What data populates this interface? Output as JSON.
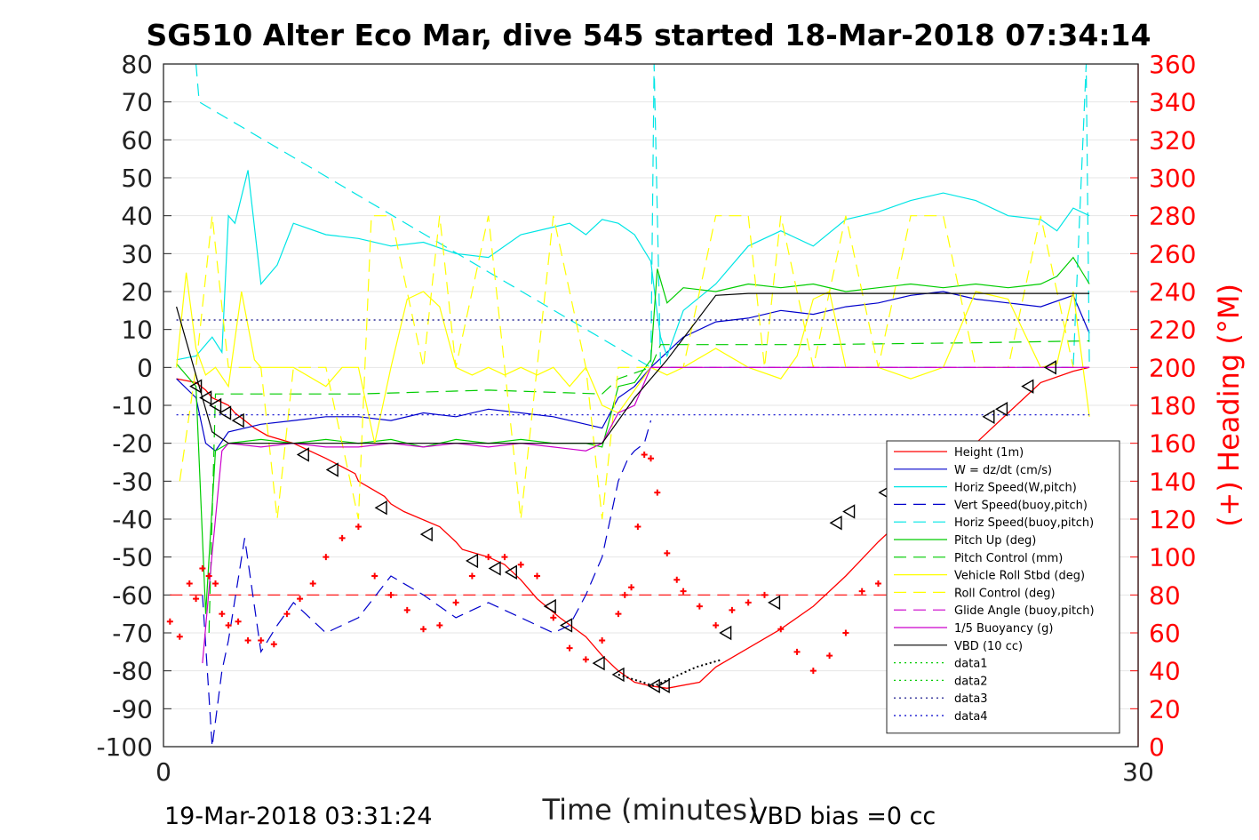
{
  "chart_data": {
    "type": "line",
    "title": "SG510 Alter Eco Mar, dive 545 started 18-Mar-2018 07:34:14",
    "xlabel": "Time (minutes)",
    "ylabel": "",
    "ylabel_right": "(+) Heading (°M)",
    "xlim": [
      0,
      30
    ],
    "ylim": [
      -100,
      80
    ],
    "ylim_right": [
      0,
      360
    ],
    "x_ticks": [
      0,
      30
    ],
    "y_ticks": [
      80,
      70,
      60,
      50,
      40,
      30,
      20,
      10,
      0,
      -10,
      -20,
      -30,
      -40,
      -50,
      -60,
      -70,
      -80,
      -90,
      -100
    ],
    "y_right_ticks": [
      360,
      340,
      320,
      300,
      280,
      260,
      240,
      220,
      200,
      180,
      160,
      140,
      120,
      100,
      80,
      60,
      40,
      20,
      0
    ],
    "grid": true,
    "legend_position": "lower-right",
    "footer_left": "19-Mar-2018 03:31:24",
    "footer_right": "VBD bias =0 cc",
    "colors": {
      "height": "#ff0000",
      "w": "#0000cc",
      "horiz": "#00e5e5",
      "vert_buoy": "#0000cc",
      "horiz_buoy": "#00e5e5",
      "pitch": "#00cc00",
      "pitch_ctrl": "#00cc00",
      "roll": "#ffff00",
      "roll_ctrl": "#ffff00",
      "glide": "#cc00cc",
      "buoy": "#cc00cc",
      "vbd": "#000000",
      "heading": "#ff0000"
    },
    "series": [
      {
        "key": "height",
        "name": "Height (1m)",
        "style": "solid",
        "color": "#ff0000",
        "x": [
          0.4,
          1.0,
          1.3,
          1.5,
          2.0,
          2.2,
          2.8,
          3.2,
          4.0,
          5.0,
          5.9,
          6.0,
          6.8,
          7.0,
          7.4,
          8.5,
          9.0,
          9.2,
          10.0,
          10.5,
          11.0,
          11.5,
          12.2,
          13.0,
          13.5,
          14.0,
          14.5,
          15.0,
          15.5,
          16.5,
          17.0,
          18.0,
          19.0,
          20.0,
          21.0,
          22.0,
          23.0,
          24.0,
          25.0,
          26.0,
          26.5,
          27.0,
          28.0,
          28.5
        ],
        "y": [
          -3,
          -4,
          -6,
          -8,
          -10,
          -12,
          -16,
          -18,
          -20,
          -24,
          -28,
          -30,
          -34,
          -36,
          -38,
          -42,
          -46,
          -48,
          -50,
          -52,
          -56,
          -61,
          -66,
          -71,
          -76,
          -80,
          -83,
          -84,
          -84.6,
          -83,
          -79,
          -74,
          -69,
          -63,
          -55,
          -46,
          -38,
          -28,
          -20,
          -12,
          -8,
          -4,
          -1,
          0
        ]
      },
      {
        "key": "w",
        "name": "W = dz/dt (cm/s)",
        "style": "solid",
        "color": "#0000cc",
        "x": [
          0.4,
          1.0,
          1.3,
          1.6,
          2.0,
          3.0,
          4.0,
          5.0,
          6.0,
          7.0,
          8.0,
          9.0,
          10.0,
          11.0,
          12.0,
          13.0,
          13.5,
          14.0,
          14.5,
          15.0,
          16.0,
          17.0,
          18.0,
          19.0,
          20.0,
          21.0,
          22.0,
          23.0,
          24.0,
          25.0,
          26.0,
          27.0,
          28.0,
          28.5
        ],
        "y": [
          -3,
          -8,
          -20,
          -22,
          -17,
          -15,
          -14,
          -13,
          -13,
          -14,
          -12,
          -13,
          -11,
          -12,
          -13,
          -15,
          -16,
          -8,
          -5,
          0,
          8,
          12,
          13,
          15,
          14,
          16,
          17,
          19,
          20,
          18,
          17,
          16,
          19,
          9
        ]
      },
      {
        "key": "horiz",
        "name": "Horiz Speed(W,pitch)",
        "style": "solid",
        "color": "#00e5e5",
        "x": [
          0.4,
          1.0,
          1.5,
          1.8,
          2.0,
          2.2,
          2.6,
          3.0,
          3.5,
          4.0,
          5.0,
          6.0,
          7.0,
          8.0,
          9.0,
          10.0,
          11.0,
          12.0,
          12.5,
          13.0,
          13.5,
          14.0,
          14.5,
          15.0,
          15.2,
          15.3,
          15.5,
          16.0,
          17.0,
          18.0,
          19.0,
          20.0,
          21.0,
          22.0,
          23.0,
          24.0,
          25.0,
          26.0,
          27.0,
          27.5,
          28.0,
          28.5
        ],
        "y": [
          2,
          3,
          8,
          4,
          40,
          38,
          52,
          22,
          27,
          38,
          35,
          34,
          32,
          33,
          30,
          29,
          35,
          37,
          38,
          35,
          39,
          38,
          35,
          28,
          14,
          8,
          3,
          15,
          22,
          32,
          36,
          32,
          39,
          41,
          44,
          46,
          44,
          40,
          39,
          36,
          42,
          40
        ]
      },
      {
        "key": "vert_buoy",
        "name": "Vert Speed(buoy,pitch)",
        "style": "dashed",
        "color": "#0000cc",
        "x": [
          1.2,
          1.5,
          1.8,
          2.0,
          2.5,
          3.0,
          3.5,
          4.0,
          5.0,
          6.0,
          7.0,
          8.0,
          9.0,
          10.0,
          11.0,
          12.0,
          12.5,
          13.0,
          13.5,
          14.0,
          14.3,
          14.5,
          14.8,
          15.0
        ],
        "y": [
          -60,
          -100,
          -80,
          -72,
          -45,
          -75,
          -68,
          -62,
          -70,
          -66,
          -55,
          -60,
          -66,
          -62,
          -66,
          -70,
          -68,
          -60,
          -50,
          -30,
          -24,
          -22,
          -20,
          -14
        ]
      },
      {
        "key": "horiz_buoy",
        "name": "Horiz Speed(buoy,pitch)",
        "style": "dashed",
        "color": "#00e5e5",
        "x": [
          1.0,
          1.1,
          15.0,
          15.1,
          15.3,
          15.5,
          15.8,
          16.0,
          17.0,
          20.0,
          24.0,
          27.0,
          28.0,
          28.4,
          28.5
        ],
        "y": [
          80,
          70,
          0,
          80,
          0,
          0,
          0,
          0,
          0,
          0,
          0,
          0,
          0,
          80,
          0
        ]
      },
      {
        "key": "pitch",
        "name": "Pitch Up (deg)",
        "style": "solid",
        "color": "#00cc00",
        "x": [
          0.4,
          1.0,
          1.3,
          1.6,
          2.0,
          3.0,
          4.0,
          5.0,
          6.0,
          7.0,
          8.0,
          9.0,
          10.0,
          11.0,
          12.0,
          13.0,
          13.5,
          14.0,
          14.5,
          15.0,
          15.2,
          15.5,
          16.0,
          17.0,
          18.0,
          19.0,
          20.0,
          21.0,
          22.0,
          23.0,
          24.0,
          25.0,
          26.0,
          27.0,
          27.5,
          28.0,
          28.5
        ],
        "y": [
          1,
          -5,
          -65,
          -22,
          -20,
          -19,
          -20,
          -19,
          -20,
          -19,
          -21,
          -19,
          -20,
          -19,
          -20,
          -20,
          -21,
          -5,
          -4,
          2,
          26,
          17,
          21,
          20,
          22,
          21,
          22,
          20,
          21,
          22,
          21,
          22,
          21,
          22,
          24,
          29,
          22
        ]
      },
      {
        "key": "pitch_ctrl",
        "name": "Pitch Control (mm)",
        "style": "dashed",
        "color": "#00cc00",
        "x": [
          1.4,
          1.6,
          3.0,
          6.0,
          10.0,
          13.5,
          14.0,
          15.0,
          15.3,
          20.0,
          25.0,
          28.5
        ],
        "y": [
          -70,
          -7,
          -7,
          -7,
          -6,
          -7,
          -3,
          0,
          6,
          6,
          6.5,
          7
        ]
      },
      {
        "key": "roll",
        "name": "Vehicle Roll Stbd (deg)",
        "style": "solid",
        "color": "#ffff00",
        "x": [
          0.4,
          0.7,
          1.0,
          1.3,
          1.6,
          2.0,
          2.4,
          2.8,
          3.0,
          4.0,
          5.0,
          5.5,
          6.0,
          6.5,
          7.0,
          7.5,
          8.0,
          8.5,
          9.0,
          9.5,
          10.0,
          10.5,
          11.0,
          11.5,
          12.0,
          12.5,
          13.0,
          13.5,
          14.0,
          15.0,
          15.5,
          16.0,
          17.0,
          18.0,
          19.0,
          19.5,
          20.0,
          20.5,
          21.0,
          22.0,
          23.0,
          24.0,
          25.0,
          26.0,
          27.0,
          27.5,
          28.0,
          28.5
        ],
        "y": [
          0,
          25,
          5,
          -2,
          0,
          -5,
          20,
          2,
          0,
          0,
          -5,
          0,
          0,
          -20,
          0,
          18,
          20,
          16,
          0,
          -2,
          0,
          -2,
          0,
          -2,
          0,
          -5,
          0,
          -10,
          -12,
          0,
          -2,
          0,
          5,
          0,
          -3,
          3,
          18,
          20,
          0,
          0,
          -3,
          0,
          20,
          18,
          0,
          1,
          20,
          -13
        ]
      },
      {
        "key": "roll_ctrl",
        "name": "Roll Control (deg)",
        "style": "dashed",
        "color": "#ffff00",
        "x": [
          0.5,
          1.0,
          1.5,
          2.0,
          3.0,
          3.5,
          4.0,
          5.0,
          6.0,
          6.4,
          7.0,
          8.0,
          8.5,
          9.0,
          10.0,
          11.0,
          12.0,
          13.0,
          13.5,
          14.0,
          15.0,
          16.0,
          17.0,
          18.0,
          18.5,
          19.0,
          20.0,
          21.0,
          22.0,
          23.0,
          24.0,
          25.0,
          26.0,
          27.0,
          28.0,
          28.5
        ],
        "y": [
          -30,
          0,
          40,
          0,
          0,
          -40,
          0,
          0,
          -40,
          40,
          40,
          0,
          40,
          0,
          40,
          -40,
          40,
          0,
          -40,
          0,
          0,
          0,
          40,
          40,
          0,
          40,
          0,
          40,
          0,
          40,
          40,
          0,
          0,
          40,
          0,
          0
        ]
      },
      {
        "key": "glide",
        "name": "Glide Angle (buoy,pitch)",
        "style": "dashed",
        "color": "#cc00cc",
        "x": [
          15.0,
          16.0,
          20.0,
          24.0,
          28.5
        ],
        "y": [
          0,
          0,
          0,
          0,
          0
        ]
      },
      {
        "key": "buoy",
        "name": "1/5 Buoyancy (g)",
        "style": "solid",
        "color": "#cc00cc",
        "x": [
          1.2,
          1.5,
          1.8,
          2.0,
          3.0,
          4.0,
          5.0,
          6.0,
          7.0,
          8.0,
          9.0,
          10.0,
          11.0,
          12.0,
          13.0,
          13.5,
          14.0,
          14.5,
          15.0,
          16.0,
          20.0,
          24.0,
          28.5
        ],
        "y": [
          -78,
          -49,
          -22,
          -20,
          -21,
          -20,
          -21,
          -21,
          -20,
          -21,
          -20,
          -21,
          -20,
          -21,
          -22,
          -20,
          -12,
          -10,
          0,
          0,
          0,
          0,
          0
        ]
      },
      {
        "key": "vbd",
        "name": "VBD (10 cc)",
        "style": "solid",
        "color": "#000000",
        "x": [
          0.4,
          1.5,
          2.0,
          3.0,
          6.0,
          10.0,
          13.5,
          14.5,
          15.0,
          15.5,
          17.0,
          18.0,
          22.0,
          26.0,
          28.5
        ],
        "y": [
          16,
          -17,
          -20,
          -20,
          -20,
          -20,
          -20,
          -8,
          -3,
          2,
          19,
          19.5,
          19.5,
          19.5,
          19.5
        ]
      },
      {
        "key": "data1",
        "name": "data1",
        "style": "dotted",
        "color": "#00cc00",
        "x": [],
        "y": []
      },
      {
        "key": "data2",
        "name": "data2",
        "style": "dotted",
        "color": "#00cc00",
        "x": [],
        "y": []
      },
      {
        "key": "data3",
        "name": "data3",
        "style": "dotted",
        "color": "#000080",
        "x": [
          0.4,
          28.5
        ],
        "y": [
          12.5,
          12.5
        ]
      },
      {
        "key": "data4",
        "name": "data4",
        "style": "dotted",
        "color": "#0000cc",
        "x": [
          0.4,
          28.5
        ],
        "y": [
          -12.5,
          -12.5
        ]
      }
    ],
    "heading_reference": {
      "y": -60,
      "color": "#ff0000",
      "style": "dashed"
    },
    "heading_points": {
      "x": [
        0.2,
        0.5,
        0.8,
        1.0,
        1.2,
        1.4,
        1.6,
        1.8,
        2.0,
        2.3,
        2.6,
        3.0,
        3.4,
        3.8,
        4.2,
        4.6,
        5.0,
        5.5,
        6.0,
        6.5,
        7.0,
        7.5,
        8.0,
        8.5,
        9.0,
        9.5,
        10.0,
        10.5,
        11.0,
        11.5,
        12.0,
        12.5,
        13.0,
        13.5,
        14.0,
        14.2,
        14.4,
        14.6,
        14.8,
        15.0,
        15.2,
        15.5,
        15.8,
        16.0,
        16.5,
        17.0,
        17.5,
        18.0,
        18.5,
        19.0,
        19.5,
        20.0,
        20.5,
        21.0,
        21.5,
        22.0,
        22.5,
        23.0,
        23.5,
        24.0,
        24.5,
        25.0,
        25.5,
        26.0,
        26.5,
        27.0,
        27.5,
        28.0,
        28.2,
        28.4,
        28.6
      ],
      "y": [
        -67,
        -71,
        -57,
        -61,
        -53,
        -55,
        -57,
        -65,
        -68,
        -67,
        -72,
        -72,
        -73,
        -65,
        -61,
        -57,
        -50,
        -45,
        -42,
        -55,
        -60,
        -64,
        -69,
        -68,
        -62,
        -55,
        -50,
        -50,
        -52,
        -55,
        -66,
        -74,
        -77,
        -72,
        -65,
        -60,
        -58,
        -42,
        -23,
        -24,
        -33,
        -49,
        -56,
        -59,
        -63,
        -68,
        -64,
        -62,
        -60,
        -69,
        -75,
        -80,
        -76,
        -70,
        -59,
        -57,
        -55,
        -58,
        -62,
        -64,
        -68,
        -58,
        -55,
        -60,
        -67,
        -70,
        -72,
        -68,
        -53,
        -47,
        -39
      ]
    },
    "triangle_markers": {
      "x": [
        1.0,
        1.3,
        1.6,
        1.9,
        2.3,
        4.3,
        5.2,
        6.7,
        8.1,
        9.5,
        10.2,
        10.7,
        11.9,
        12.4,
        13.4,
        14.0,
        15.1,
        15.4,
        17.3,
        18.8,
        20.7,
        21.1,
        22.2,
        25.4,
        25.8,
        26.6,
        27.3
      ],
      "y": [
        -5,
        -8,
        -10,
        -12,
        -14,
        -23,
        -27,
        -37,
        -44,
        -51,
        -53,
        -54,
        -63,
        -68,
        -78,
        -81,
        -84,
        -84,
        -70,
        -62,
        -41,
        -38,
        -33,
        -13,
        -11,
        -5,
        0
      ]
    },
    "legend": [
      "Height (1m)",
      "W = dz/dt (cm/s)",
      "Horiz Speed(W,pitch)",
      "Vert Speed(buoy,pitch)",
      "Horiz Speed(buoy,pitch)",
      "Pitch Up (deg)",
      "Pitch Control (mm)",
      "Vehicle Roll Stbd (deg)",
      "Roll Control (deg)",
      "Glide Angle (buoy,pitch)",
      "1/5 Buoyancy (g)",
      "VBD (10 cc)",
      "data1",
      "data2",
      "data3",
      "data4"
    ]
  }
}
